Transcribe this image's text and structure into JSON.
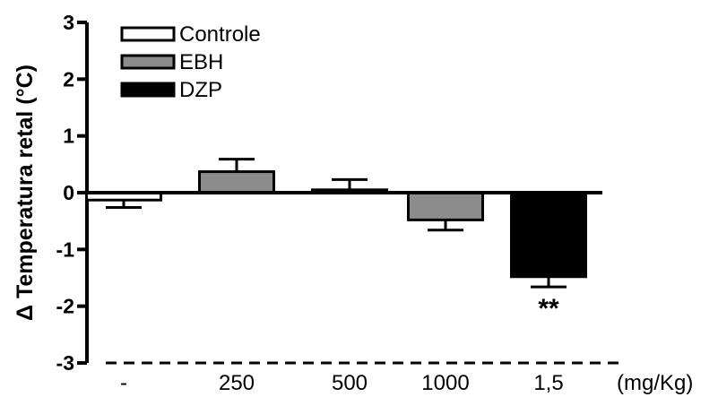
{
  "chart_data": {
    "type": "bar",
    "ylabel": "Δ Temperatura retal (°C)",
    "unit_label": "(mg/Kg)",
    "ylim": [
      -3,
      3
    ],
    "yticks": [
      "3",
      "2",
      "1",
      "0",
      "-1",
      "-2",
      "-3"
    ],
    "categories": [
      "-",
      "250",
      "500",
      "1000",
      "1,5"
    ],
    "bars": [
      {
        "category": "-",
        "group": "Controle",
        "value": -0.13,
        "error": 0.13,
        "color": "#ffffff"
      },
      {
        "category": "250",
        "group": "EBH",
        "value": 0.37,
        "error": 0.22,
        "color": "#8c8c8c"
      },
      {
        "category": "500",
        "group": "EBH",
        "value": 0.05,
        "error": 0.18,
        "color": "#8c8c8c"
      },
      {
        "category": "1000",
        "group": "EBH",
        "value": -0.48,
        "error": 0.18,
        "color": "#8c8c8c"
      },
      {
        "category": "1,5",
        "group": "DZP",
        "value": -1.48,
        "error": 0.18,
        "color": "#000000",
        "annotation": "**"
      }
    ],
    "legend": [
      {
        "label": "Controle",
        "color": "#ffffff"
      },
      {
        "label": "EBH",
        "color": "#8c8c8c"
      },
      {
        "label": "DZP",
        "color": "#000000"
      }
    ],
    "legend_position": "top-left",
    "grid": false
  }
}
